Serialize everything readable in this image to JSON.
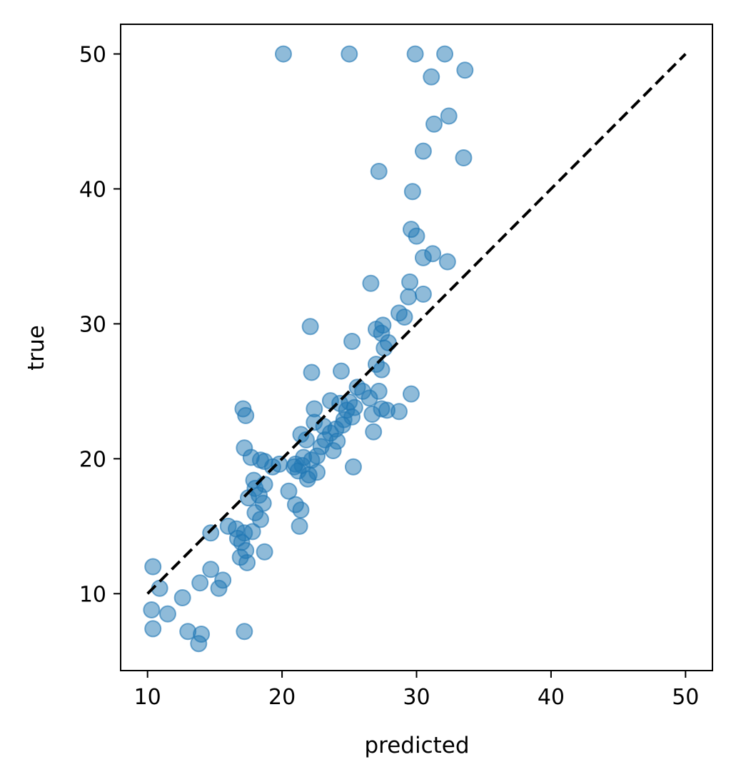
{
  "chart_data": {
    "type": "scatter",
    "title": "",
    "xlabel": "predicted",
    "ylabel": "true",
    "xlim": [
      8,
      52
    ],
    "ylim": [
      4.3,
      52.2
    ],
    "xticks": [
      10,
      20,
      30,
      40,
      50
    ],
    "yticks": [
      10,
      20,
      30,
      40,
      50
    ],
    "xtick_labels": [
      "10",
      "20",
      "30",
      "40",
      "50"
    ],
    "ytick_labels": [
      "10",
      "20",
      "30",
      "40",
      "50"
    ],
    "grid": false,
    "marker_color": "#1f77b4",
    "marker_alpha": 0.5,
    "reference_line": {
      "from": [
        10,
        10
      ],
      "to": [
        50,
        50
      ],
      "style": "dashed",
      "color": "#000000"
    },
    "points": [
      [
        20.1,
        50.0
      ],
      [
        25.0,
        50.0
      ],
      [
        29.9,
        50.0
      ],
      [
        32.1,
        50.0
      ],
      [
        33.6,
        48.8
      ],
      [
        31.1,
        48.3
      ],
      [
        32.4,
        45.4
      ],
      [
        31.3,
        44.8
      ],
      [
        30.5,
        42.8
      ],
      [
        33.5,
        42.3
      ],
      [
        27.2,
        41.3
      ],
      [
        29.7,
        39.8
      ],
      [
        29.6,
        37.0
      ],
      [
        30.0,
        36.5
      ],
      [
        31.2,
        35.2
      ],
      [
        30.5,
        34.9
      ],
      [
        32.3,
        34.6
      ],
      [
        29.5,
        33.1
      ],
      [
        26.6,
        33.0
      ],
      [
        29.4,
        32.0
      ],
      [
        30.5,
        32.2
      ],
      [
        28.7,
        30.8
      ],
      [
        29.1,
        30.5
      ],
      [
        22.1,
        29.8
      ],
      [
        27.0,
        29.6
      ],
      [
        27.5,
        29.9
      ],
      [
        27.4,
        29.3
      ],
      [
        25.2,
        28.7
      ],
      [
        27.9,
        28.6
      ],
      [
        27.6,
        28.2
      ],
      [
        22.2,
        26.4
      ],
      [
        24.4,
        26.5
      ],
      [
        27.0,
        27.0
      ],
      [
        27.4,
        26.6
      ],
      [
        25.6,
        25.3
      ],
      [
        26.0,
        25.0
      ],
      [
        27.2,
        25.0
      ],
      [
        29.6,
        24.8
      ],
      [
        26.5,
        24.5
      ],
      [
        23.6,
        24.3
      ],
      [
        24.3,
        24.1
      ],
      [
        25.0,
        24.2
      ],
      [
        25.4,
        23.8
      ],
      [
        24.8,
        23.6
      ],
      [
        27.4,
        23.7
      ],
      [
        27.8,
        23.6
      ],
      [
        28.7,
        23.5
      ],
      [
        22.4,
        23.7
      ],
      [
        26.7,
        23.3
      ],
      [
        25.2,
        23.1
      ],
      [
        24.6,
        22.9
      ],
      [
        22.4,
        22.7
      ],
      [
        23.1,
        22.4
      ],
      [
        24.5,
        22.5
      ],
      [
        24.0,
        22.2
      ],
      [
        26.8,
        22.0
      ],
      [
        23.6,
        21.9
      ],
      [
        21.4,
        21.8
      ],
      [
        21.8,
        21.4
      ],
      [
        23.2,
        21.4
      ],
      [
        24.1,
        21.3
      ],
      [
        22.9,
        20.9
      ],
      [
        23.8,
        20.6
      ],
      [
        22.6,
        20.2
      ],
      [
        21.6,
        20.1
      ],
      [
        22.2,
        19.9
      ],
      [
        21.0,
        19.6
      ],
      [
        21.5,
        19.5
      ],
      [
        20.9,
        19.4
      ],
      [
        22.6,
        19.0
      ],
      [
        21.2,
        19.1
      ],
      [
        19.8,
        19.6
      ],
      [
        19.3,
        19.4
      ],
      [
        25.3,
        19.4
      ],
      [
        21.9,
        18.5
      ],
      [
        22.0,
        18.8
      ],
      [
        18.4,
        19.9
      ],
      [
        18.7,
        19.8
      ],
      [
        17.7,
        20.1
      ],
      [
        17.2,
        20.8
      ],
      [
        17.1,
        23.7
      ],
      [
        17.3,
        23.2
      ],
      [
        17.9,
        18.4
      ],
      [
        18.7,
        18.1
      ],
      [
        18.0,
        17.8
      ],
      [
        17.5,
        17.1
      ],
      [
        18.3,
        17.3
      ],
      [
        18.6,
        16.7
      ],
      [
        20.5,
        17.6
      ],
      [
        21.0,
        16.6
      ],
      [
        21.4,
        16.2
      ],
      [
        21.3,
        15.0
      ],
      [
        18.0,
        16.0
      ],
      [
        18.4,
        15.5
      ],
      [
        16.0,
        15.0
      ],
      [
        16.6,
        14.8
      ],
      [
        17.2,
        14.5
      ],
      [
        17.8,
        14.6
      ],
      [
        14.7,
        14.5
      ],
      [
        16.7,
        14.1
      ],
      [
        17.0,
        13.8
      ],
      [
        17.3,
        13.2
      ],
      [
        18.7,
        13.1
      ],
      [
        16.9,
        12.7
      ],
      [
        17.4,
        12.3
      ],
      [
        10.4,
        12.0
      ],
      [
        14.7,
        11.8
      ],
      [
        15.6,
        11.0
      ],
      [
        13.9,
        10.8
      ],
      [
        15.3,
        10.4
      ],
      [
        10.9,
        10.4
      ],
      [
        12.6,
        9.7
      ],
      [
        10.3,
        8.8
      ],
      [
        11.5,
        8.5
      ],
      [
        10.4,
        7.4
      ],
      [
        13.0,
        7.2
      ],
      [
        17.2,
        7.2
      ],
      [
        14.0,
        7.0
      ],
      [
        13.8,
        6.3
      ]
    ]
  }
}
